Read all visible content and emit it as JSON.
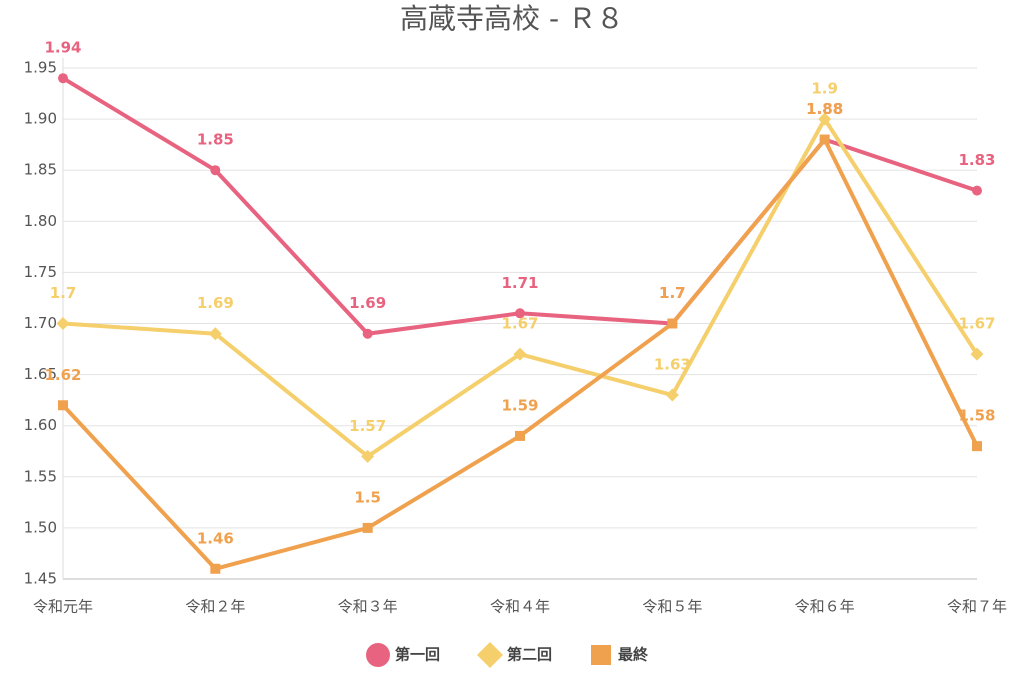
{
  "chart_data": {
    "type": "line",
    "title": "高蔵寺高校 - Ｒ８",
    "categories": [
      "令和元年",
      "令和２年",
      "令和３年",
      "令和４年",
      "令和５年",
      "令和６年",
      "令和７年"
    ],
    "series": [
      {
        "name": "第一回",
        "color": "#e8637f",
        "marker": "circle",
        "values": [
          1.94,
          1.85,
          1.69,
          1.71,
          1.7,
          1.88,
          1.83
        ]
      },
      {
        "name": "第二回",
        "color": "#f5cf6b",
        "marker": "diamond",
        "values": [
          1.7,
          1.69,
          1.57,
          1.67,
          1.63,
          1.9,
          1.67
        ]
      },
      {
        "name": "最終",
        "color": "#f0a14e",
        "marker": "square",
        "values": [
          1.62,
          1.46,
          1.5,
          1.59,
          1.7,
          1.88,
          1.58
        ]
      }
    ],
    "ylim": [
      1.45,
      1.95
    ],
    "yticks": [
      1.45,
      {
        "value": 1.5,
        "label": "1.50"
      },
      1.55,
      {
        "value": 1.6,
        "label": "1.60"
      },
      1.65,
      {
        "value": 1.7,
        "label": "1.70"
      },
      1.75,
      {
        "value": 1.8,
        "label": "1.80"
      },
      1.85,
      {
        "value": 1.9,
        "label": "1.90"
      },
      1.95
    ],
    "grid": true,
    "legend": "bottom"
  }
}
